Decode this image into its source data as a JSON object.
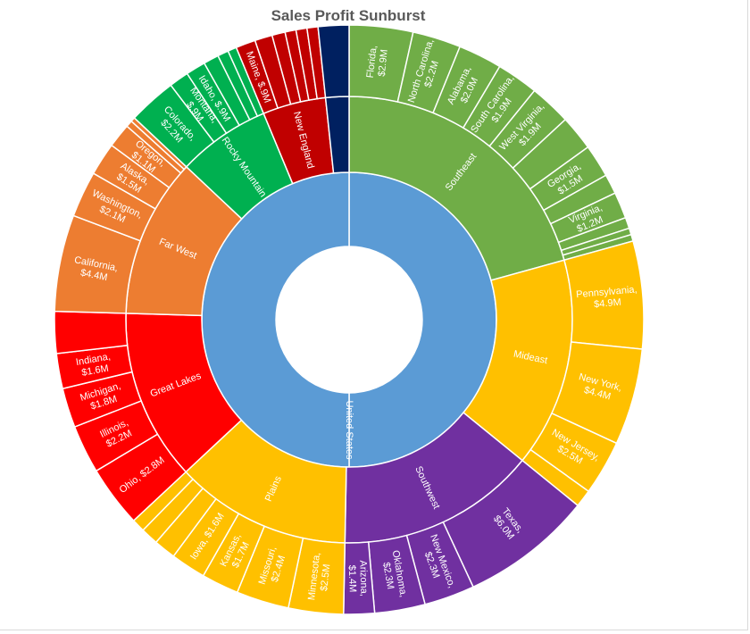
{
  "chart_data": {
    "type": "sunburst",
    "title": "Sales Profit Sunburst",
    "root": {
      "name": "United States",
      "color": "#5b9bd5"
    },
    "regions": [
      {
        "name": "Southeast",
        "label": "Southeast",
        "color": "#70ad47",
        "total": 17.2,
        "states": [
          {
            "name": "Florida",
            "label": "Florida, $2.9M",
            "value": 2.9
          },
          {
            "name": "North Carolina",
            "label": "North Carolina, $2.2M",
            "value": 2.2
          },
          {
            "name": "Alabama",
            "label": "Alabama, $2.0M",
            "value": 2.0
          },
          {
            "name": "South Carolina",
            "label": "South Carolina, $1.9M",
            "value": 1.9
          },
          {
            "name": "West Virginia",
            "label": "West Virginia, $1.9M",
            "value": 1.9
          },
          {
            "name": "",
            "label": "",
            "value": 1.6
          },
          {
            "name": "Georgia",
            "label": "Georgia, $1.5M",
            "value": 1.5
          },
          {
            "name": "",
            "label": "",
            "value": 0.9
          },
          {
            "name": "Virginia",
            "label": "Virginia, $1.2M",
            "value": 1.2
          },
          {
            "name": "",
            "label": "",
            "value": 0.5
          },
          {
            "name": "",
            "label": "",
            "value": 0.3
          },
          {
            "name": "",
            "label": "",
            "value": 0.3
          }
        ]
      },
      {
        "name": "Mideast",
        "label": "Mideast",
        "color": "#ffc000",
        "total": 12.6,
        "states": [
          {
            "name": "Pennsylvania",
            "label": "Pennsylvania, $4.9M",
            "value": 4.9
          },
          {
            "name": "New York",
            "label": "New York, $4.4M",
            "value": 4.4
          },
          {
            "name": "New Jersey",
            "label": "New Jersey, $2.5M",
            "value": 2.5
          },
          {
            "name": "",
            "label": "",
            "value": 0.8
          }
        ]
      },
      {
        "name": "Southwest",
        "label": "Southwest",
        "color": "#7030a0",
        "total": 12.0,
        "states": [
          {
            "name": "Texas",
            "label": "Texas, $6.0M",
            "value": 6.0
          },
          {
            "name": "New Mexico",
            "label": "New Mexico, $2.3M",
            "value": 2.3
          },
          {
            "name": "Oklahoma",
            "label": "Oklahoma, $2.3M",
            "value": 2.3
          },
          {
            "name": "Arizona",
            "label": "Arizona, $1.4M",
            "value": 1.4
          }
        ]
      },
      {
        "name": "Plains",
        "label": "Plains",
        "color": "#ffc000",
        "total": 10.6,
        "states": [
          {
            "name": "Minnesota",
            "label": "Minnesota, $2.5M",
            "value": 2.5
          },
          {
            "name": "Missouri",
            "label": "Missouri, $2.4M",
            "value": 2.4
          },
          {
            "name": "Kansas",
            "label": "Kansas, $1.7M",
            "value": 1.7
          },
          {
            "name": "Iowa",
            "label": "Iowa, $1.6M",
            "value": 1.6
          },
          {
            "name": "",
            "label": "",
            "value": 1.0
          },
          {
            "name": "",
            "label": "",
            "value": 0.8
          },
          {
            "name": "",
            "label": "",
            "value": 0.6
          }
        ]
      },
      {
        "name": "Great Lakes",
        "label": "Great Lakes",
        "color": "#ff0000",
        "total": 10.3,
        "states": [
          {
            "name": "Ohio",
            "label": "Ohio, $2.8M",
            "value": 2.8
          },
          {
            "name": "Illinois",
            "label": "Illinois, $2.2M",
            "value": 2.2
          },
          {
            "name": "Michigan",
            "label": "Michigan, $1.8M",
            "value": 1.8
          },
          {
            "name": "Indiana",
            "label": "Indiana, $1.6M",
            "value": 1.6
          },
          {
            "name": "",
            "label": "",
            "value": 1.9
          }
        ]
      },
      {
        "name": "Far West",
        "label": "Far West",
        "color": "#ed7d31",
        "total": 9.6,
        "states": [
          {
            "name": "California",
            "label": "California, $4.4M",
            "value": 4.4
          },
          {
            "name": "Washington",
            "label": "Washington, $2.1M",
            "value": 2.1
          },
          {
            "name": "Alaska",
            "label": "Alaska, $1.5M",
            "value": 1.5
          },
          {
            "name": "Oregon",
            "label": "Oregon, $1.1M",
            "value": 1.1
          },
          {
            "name": "",
            "label": "",
            "value": 0.3
          },
          {
            "name": "",
            "label": "",
            "value": 0.2
          }
        ]
      },
      {
        "name": "Rocky Mountain",
        "label": "Rocky Mountain",
        "color": "#00b050",
        "total": 5.6,
        "states": [
          {
            "name": "Colorado",
            "label": "Colorado, $2.2M",
            "value": 2.2
          },
          {
            "name": "Montana",
            "label": "Montana, $.9M",
            "value": 0.9
          },
          {
            "name": "Idaho",
            "label": "Idaho, $.9M",
            "value": 0.9
          },
          {
            "name": "",
            "label": "",
            "value": 0.7
          },
          {
            "name": "",
            "label": "",
            "value": 0.5
          },
          {
            "name": "",
            "label": "",
            "value": 0.4
          }
        ]
      },
      {
        "name": "New England",
        "label": "New England",
        "color": "#c00000",
        "total": 3.8,
        "states": [
          {
            "name": "Maine",
            "label": "Maine, $.9M",
            "value": 0.9
          },
          {
            "name": "",
            "label": "",
            "value": 0.8
          },
          {
            "name": "",
            "label": "",
            "value": 0.6
          },
          {
            "name": "",
            "label": "",
            "value": 0.5
          },
          {
            "name": "",
            "label": "",
            "value": 0.5
          },
          {
            "name": "",
            "label": "",
            "value": 0.5
          }
        ]
      },
      {
        "name": "",
        "label": "",
        "color": "#002060",
        "total": 1.4,
        "states": [
          {
            "name": "",
            "label": "",
            "value": 1.4
          }
        ]
      }
    ]
  }
}
